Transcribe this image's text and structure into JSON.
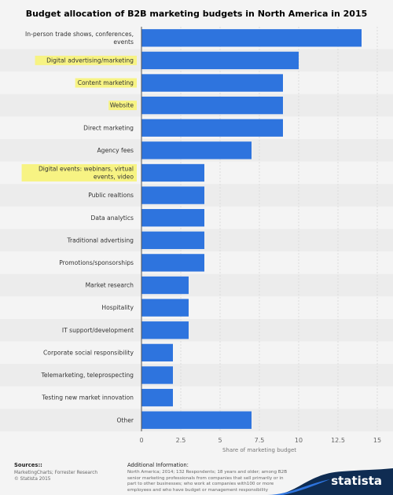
{
  "title": "Budget allocation of B2B marketing budgets in North America in 2015",
  "chart_data": {
    "type": "bar",
    "orientation": "horizontal",
    "title": "Budget allocation of B2B marketing budgets in North America in 2015",
    "xlabel": "Share of marketing budget",
    "ylabel": "",
    "xlim": [
      0,
      15
    ],
    "xticks": [
      "0",
      "2.5",
      "5",
      "7.5",
      "10",
      "12.5",
      "15"
    ],
    "grid": true,
    "bar_color": "#2e74de",
    "highlight_color": "#f7f383",
    "categories": [
      "In-person trade shows, conferences, events",
      "Digital advertising/marketing",
      "Content marketing",
      "Website",
      "Direct marketing",
      "Agency fees",
      "Digital events: webinars, virtual events, video",
      "Public realtions",
      "Data analytics",
      "Traditional advertising",
      "Promotions/sponsorships",
      "Market research",
      "Hospitality",
      "IT support/development",
      "Corporate social responsibility",
      "Telemarketing, teleprospecting",
      "Testing new market innovation",
      "Other"
    ],
    "values": [
      14,
      10,
      9,
      9,
      9,
      7,
      4,
      4,
      4,
      4,
      4,
      3,
      3,
      3,
      2,
      2,
      2,
      7
    ],
    "highlighted": [
      false,
      true,
      true,
      true,
      false,
      false,
      true,
      false,
      false,
      false,
      false,
      false,
      false,
      false,
      false,
      false,
      false,
      false
    ]
  },
  "footer": {
    "sources_heading": "Sources::",
    "sources_text": "MarketingCharts; Forrester Research\n© Statista 2015",
    "additional_heading": "Additional Information:",
    "additional_text": "North America; 2014; 132 Respondents; 18 years and older; among B2B senior marketing professionals from companies that sell primarily or in part to other businesses; who work at companies with100 or more employees and who have budget or management responsibility",
    "brand": "statista",
    "brand_color": "#0f2c52"
  }
}
